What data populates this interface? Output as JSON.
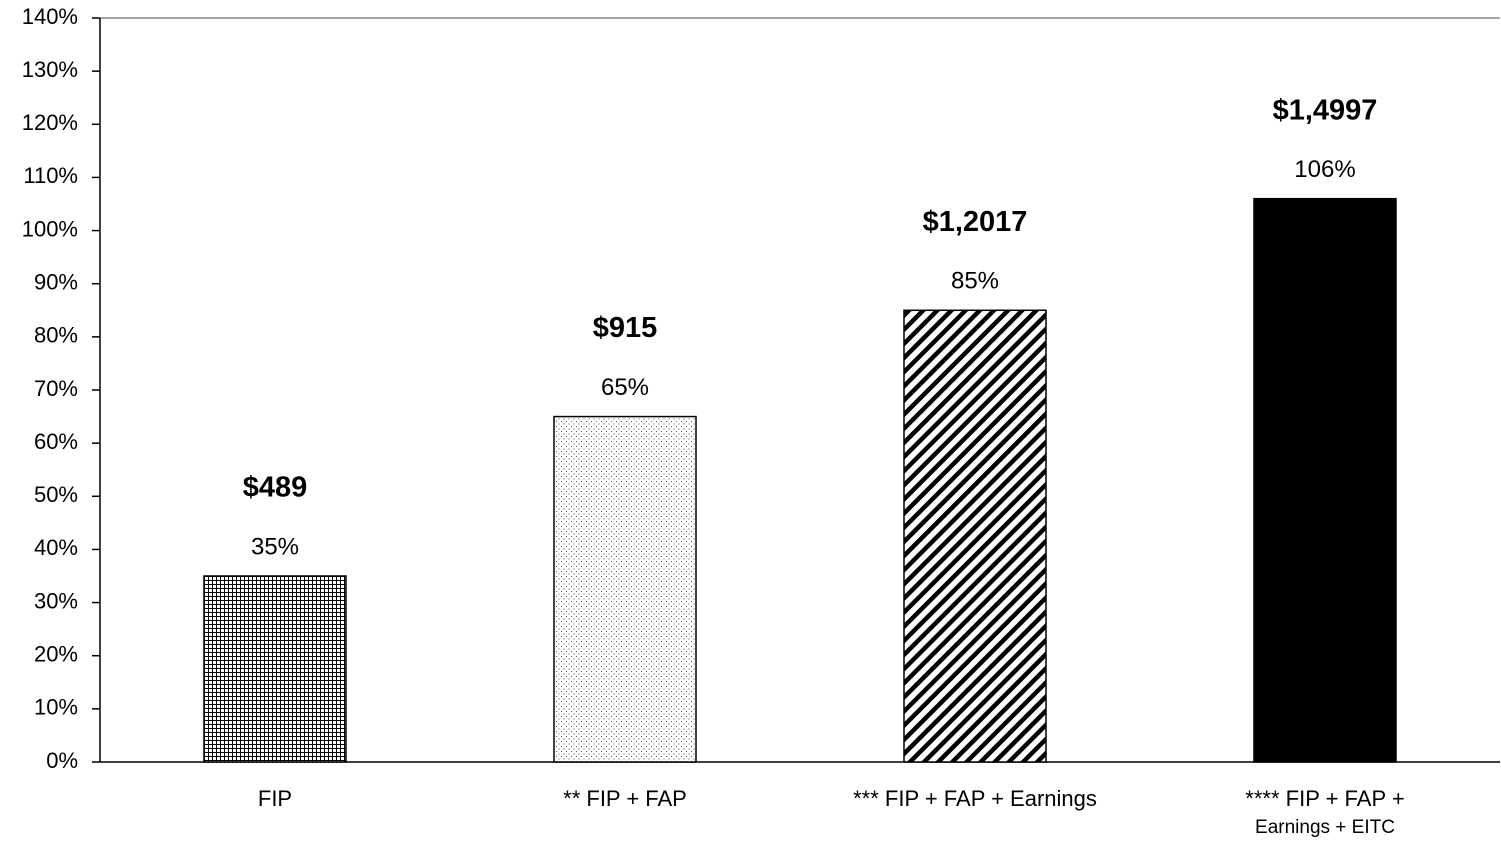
{
  "chart_data": {
    "type": "bar",
    "categories": [
      "FIP",
      "** FIP + FAP",
      "*** FIP + FAP + Earnings",
      "**** FIP + FAP +\nEarnings + EITC"
    ],
    "values": [
      35,
      65,
      85,
      106
    ],
    "value_labels": [
      "35%",
      "65%",
      "85%",
      "106%"
    ],
    "amounts": [
      "$489",
      "$915",
      "$1,2017",
      "$1,4997"
    ],
    "patterns": [
      "grid",
      "dots",
      "diagonal",
      "solid"
    ],
    "color": "#000000",
    "ylim": [
      0,
      140
    ],
    "yticks": [
      {
        "value": 0,
        "label": "0%"
      },
      {
        "value": 10,
        "label": "10%"
      },
      {
        "value": 20,
        "label": "20%"
      },
      {
        "value": 30,
        "label": "30%"
      },
      {
        "value": 40,
        "label": "40%"
      },
      {
        "value": 50,
        "label": "50%"
      },
      {
        "value": 60,
        "label": "60%"
      },
      {
        "value": 70,
        "label": "70%"
      },
      {
        "value": 80,
        "label": "80%"
      },
      {
        "value": 90,
        "label": "90%"
      },
      {
        "value": 100,
        "label": "100%"
      },
      {
        "value": 110,
        "label": "110%"
      },
      {
        "value": 120,
        "label": "120%"
      },
      {
        "value": 130,
        "label": "130%"
      },
      {
        "value": 140,
        "label": "140%"
      }
    ],
    "grid": false
  }
}
